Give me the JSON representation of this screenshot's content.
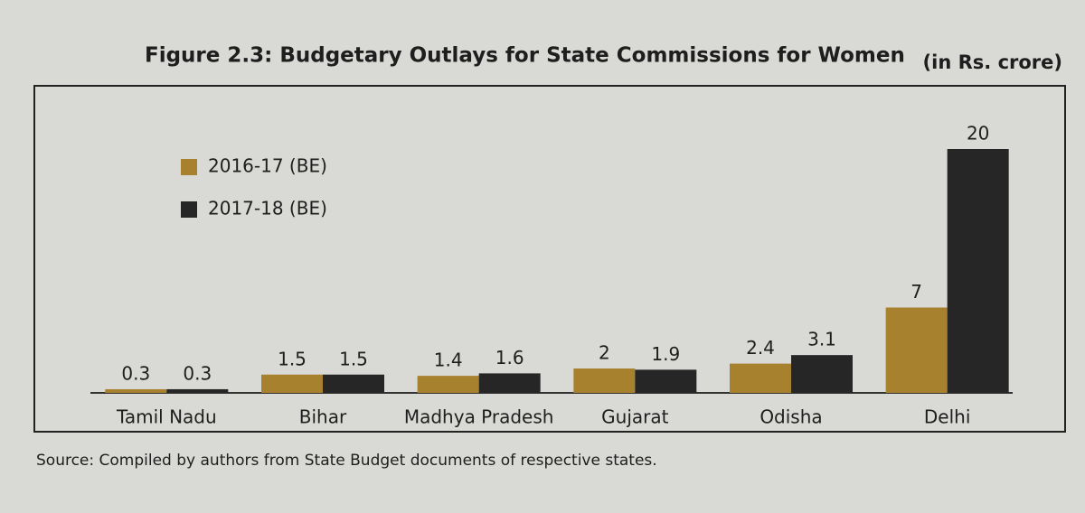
{
  "chart_data": {
    "type": "bar",
    "title": "Figure 2.3: Budgetary Outlays for State Commissions for Women",
    "subtitle": "(in Rs. crore)",
    "source": "Source: Compiled by authors from State Budget documents of respective states.",
    "categories": [
      "Tamil Nadu",
      "Bihar",
      "Madhya Pradesh",
      "Gujarat",
      "Odisha",
      "Delhi"
    ],
    "series": [
      {
        "name": "2016-17 (BE)",
        "color": "#a8812f",
        "values": [
          0.3,
          1.5,
          1.4,
          2,
          2.4,
          7
        ]
      },
      {
        "name": "2017-18 (BE)",
        "color": "#262626",
        "values": [
          0.3,
          1.5,
          1.6,
          1.9,
          3.1,
          20
        ]
      }
    ],
    "legend": "upper left"
  }
}
